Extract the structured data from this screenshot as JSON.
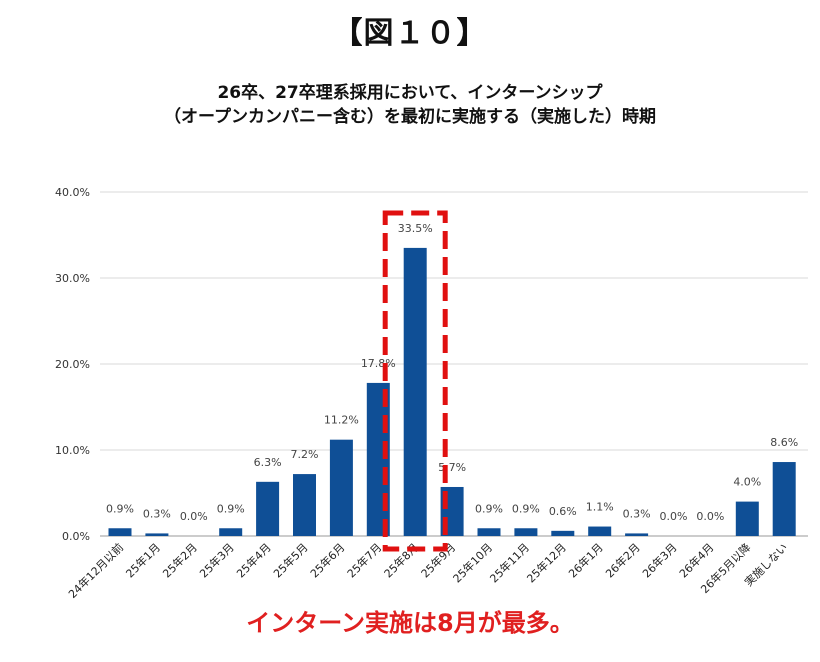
{
  "figure_label": "【図１０】",
  "subtitle_line1": "26卒、27卒理系採用において、インターンシップ",
  "subtitle_line2": "（オープンカンパニー含む）を最初に実施する（実施した）時期",
  "conclusion": "インターン実施は8月が最多。",
  "colors": {
    "bar": "#0f4f96",
    "highlight": "#e01010",
    "grid": "#d9d9d9",
    "conclusion": "#e02020"
  },
  "chart_data": {
    "type": "bar",
    "categories": [
      "24年12月以前",
      "25年1月",
      "25年2月",
      "25年3月",
      "25年4月",
      "25年5月",
      "25年6月",
      "25年7月",
      "25年8月",
      "25年9月",
      "25年10月",
      "25年11月",
      "25年12月",
      "26年1月",
      "26年2月",
      "26年3月",
      "26年4月",
      "26年5月以降",
      "実施しない"
    ],
    "values": [
      0.9,
      0.3,
      0.0,
      0.9,
      6.3,
      7.2,
      11.2,
      17.8,
      33.5,
      5.7,
      0.9,
      0.9,
      0.6,
      1.1,
      0.3,
      0.0,
      0.0,
      4.0,
      8.6
    ],
    "data_labels": [
      "0.9%",
      "0.3%",
      "0.0%",
      "0.9%",
      "6.3%",
      "7.2%",
      "11.2%",
      "17.8%",
      "33.5%",
      "5.7%",
      "0.9%",
      "0.9%",
      "0.6%",
      "1.1%",
      "0.3%",
      "0.0%",
      "0.0%",
      "4.0%",
      "8.6%"
    ],
    "yticks": [
      0,
      10,
      20,
      30,
      40
    ],
    "ytick_labels": [
      "0.0%",
      "10.0%",
      "20.0%",
      "30.0%",
      "40.0%"
    ],
    "ylim": [
      0,
      40
    ],
    "grid": true,
    "highlight_category": "25年8月"
  }
}
